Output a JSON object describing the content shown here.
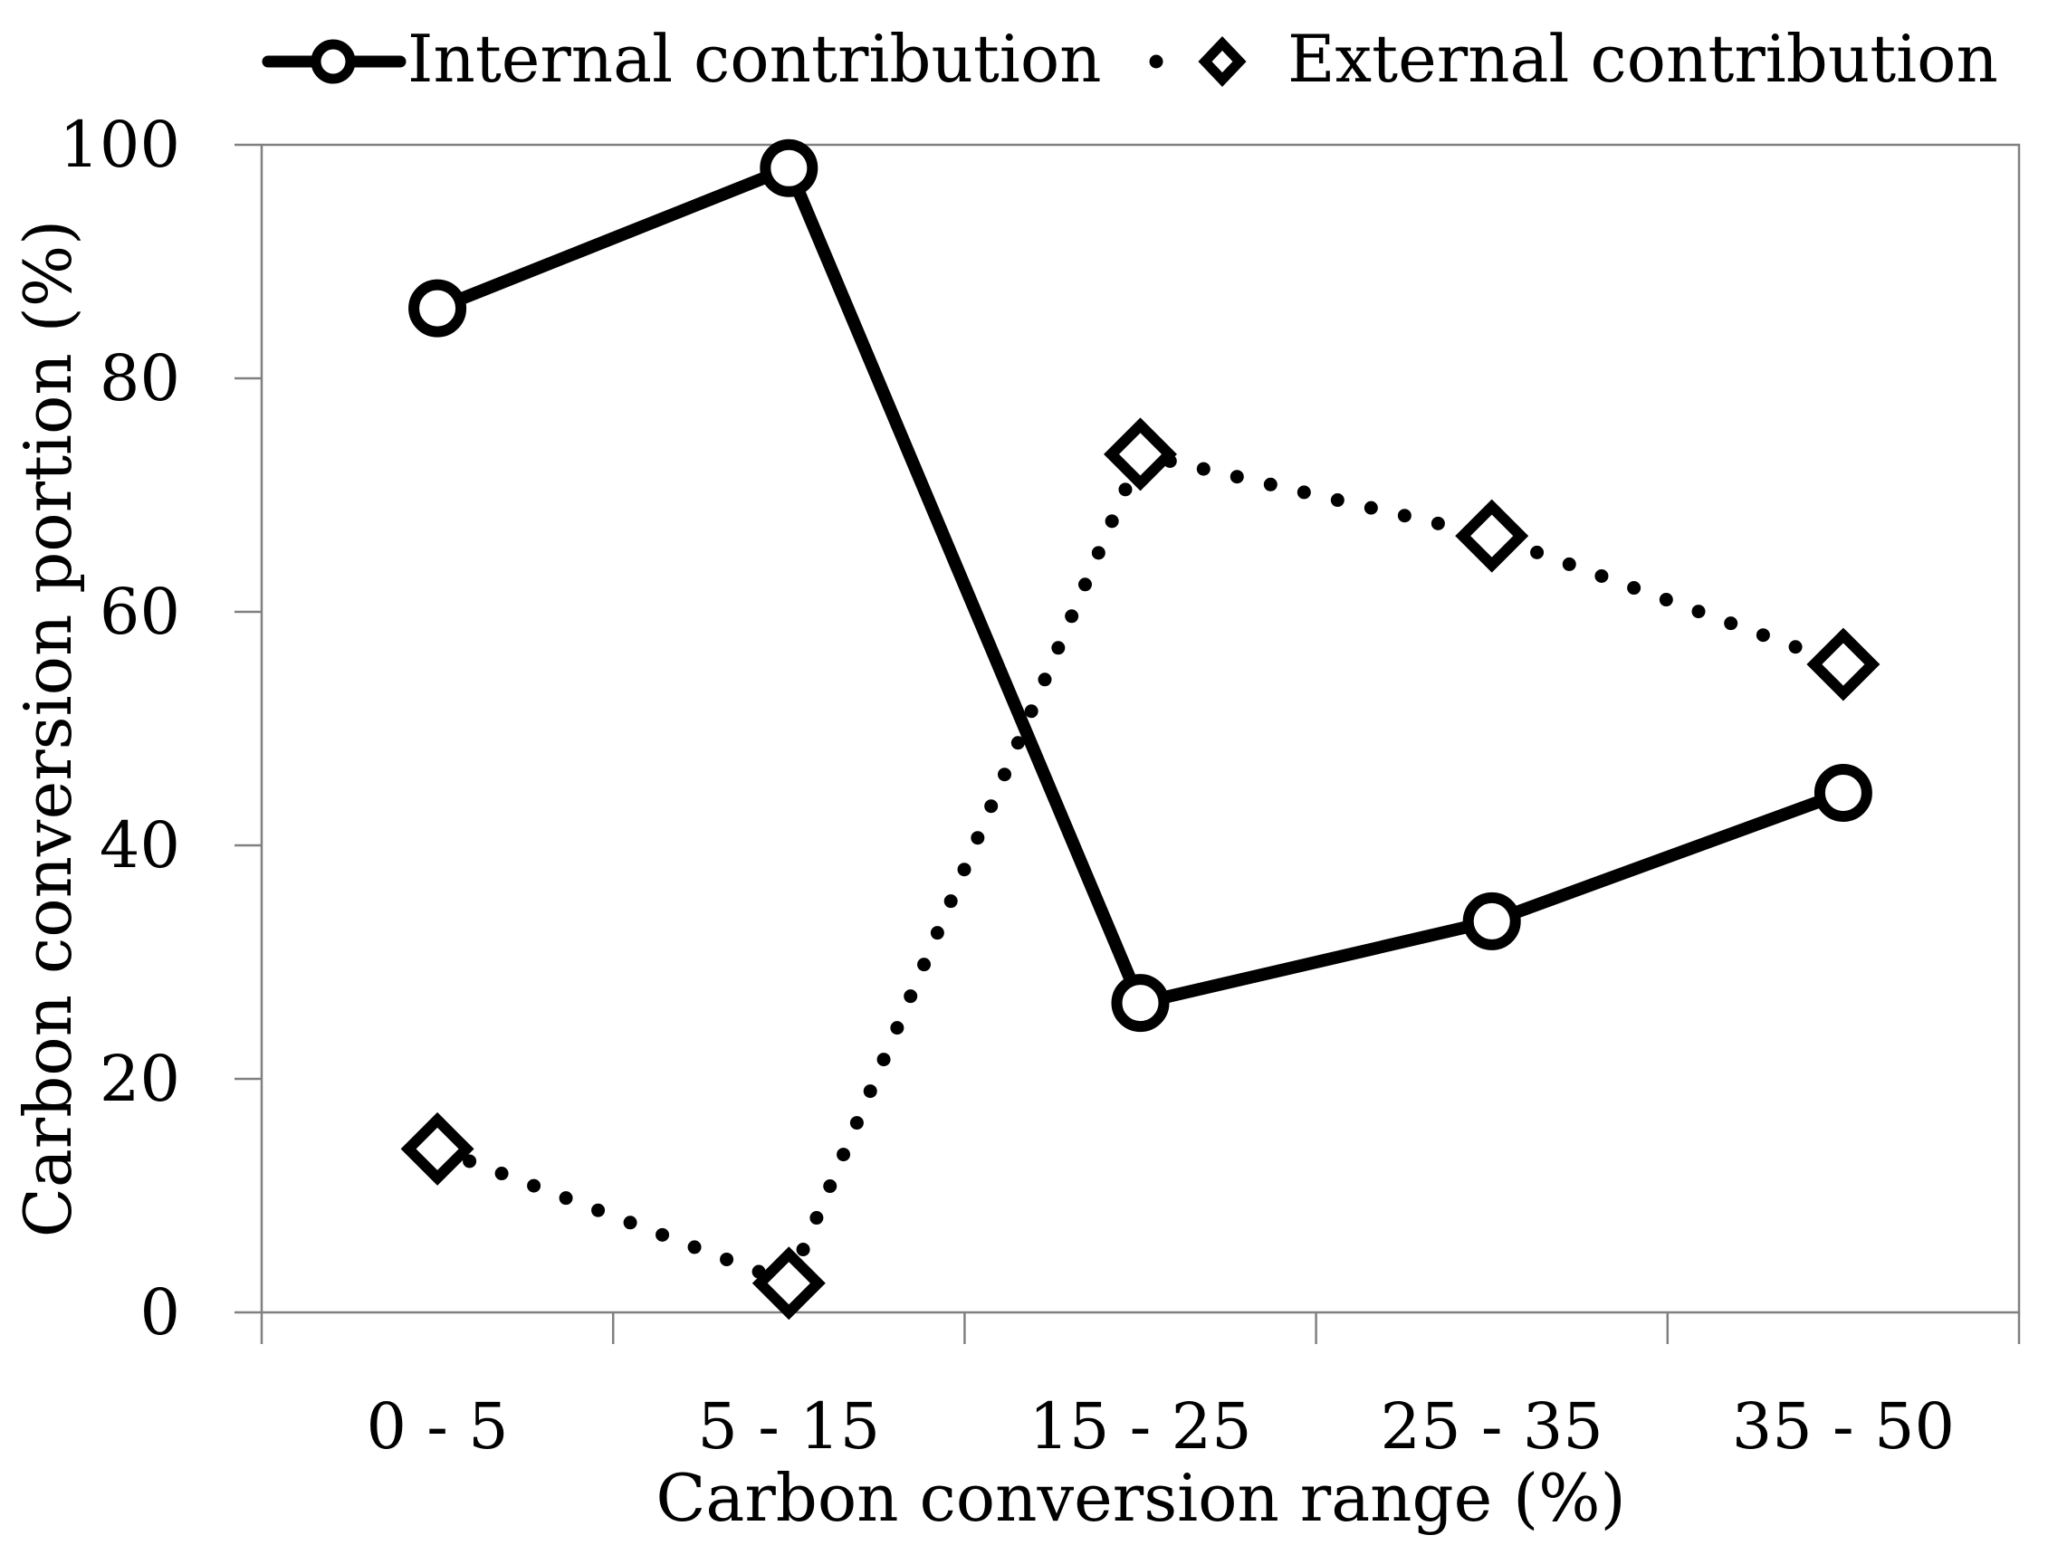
{
  "chart_data": {
    "type": "line",
    "title": "",
    "xlabel": "Carbon conversion range (%)",
    "ylabel": "Carbon conversion portion (%)",
    "categories": [
      "0 - 5",
      "5 - 15",
      "15 - 25",
      "25 - 35",
      "35 - 50"
    ],
    "ylim": [
      0,
      100
    ],
    "yticks": [
      0,
      20,
      40,
      60,
      80,
      100
    ],
    "ytick_labels": [
      "0",
      "20",
      "40",
      "60",
      "80",
      "100"
    ],
    "grid": false,
    "legend_position": "top",
    "series": [
      {
        "name": "Internal contribution",
        "marker": "circle",
        "line_style": "solid",
        "color": "#000000",
        "values": [
          86,
          98,
          26.5,
          33.5,
          44.5
        ]
      },
      {
        "name": "External contribution",
        "marker": "diamond",
        "line_style": "dotted",
        "color": "#000000",
        "values": [
          14,
          2.5,
          73.5,
          66.5,
          55.5
        ]
      }
    ]
  }
}
